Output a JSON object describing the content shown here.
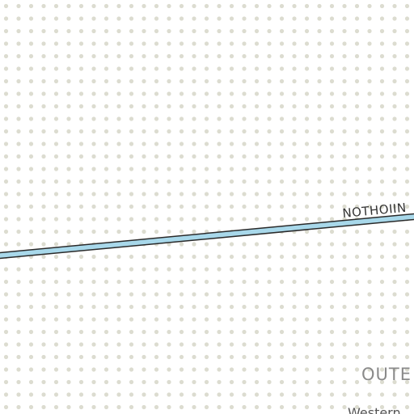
{
  "map": {
    "background_color": "#ffffff",
    "dot_pattern_color": "#dcdcd0",
    "road": {
      "name": "NOTHOIIN",
      "fill_color": "#a8d8ea",
      "casing_color": "#2a2a2a"
    },
    "labels": {
      "region": "OUTE",
      "place": "Western"
    }
  }
}
